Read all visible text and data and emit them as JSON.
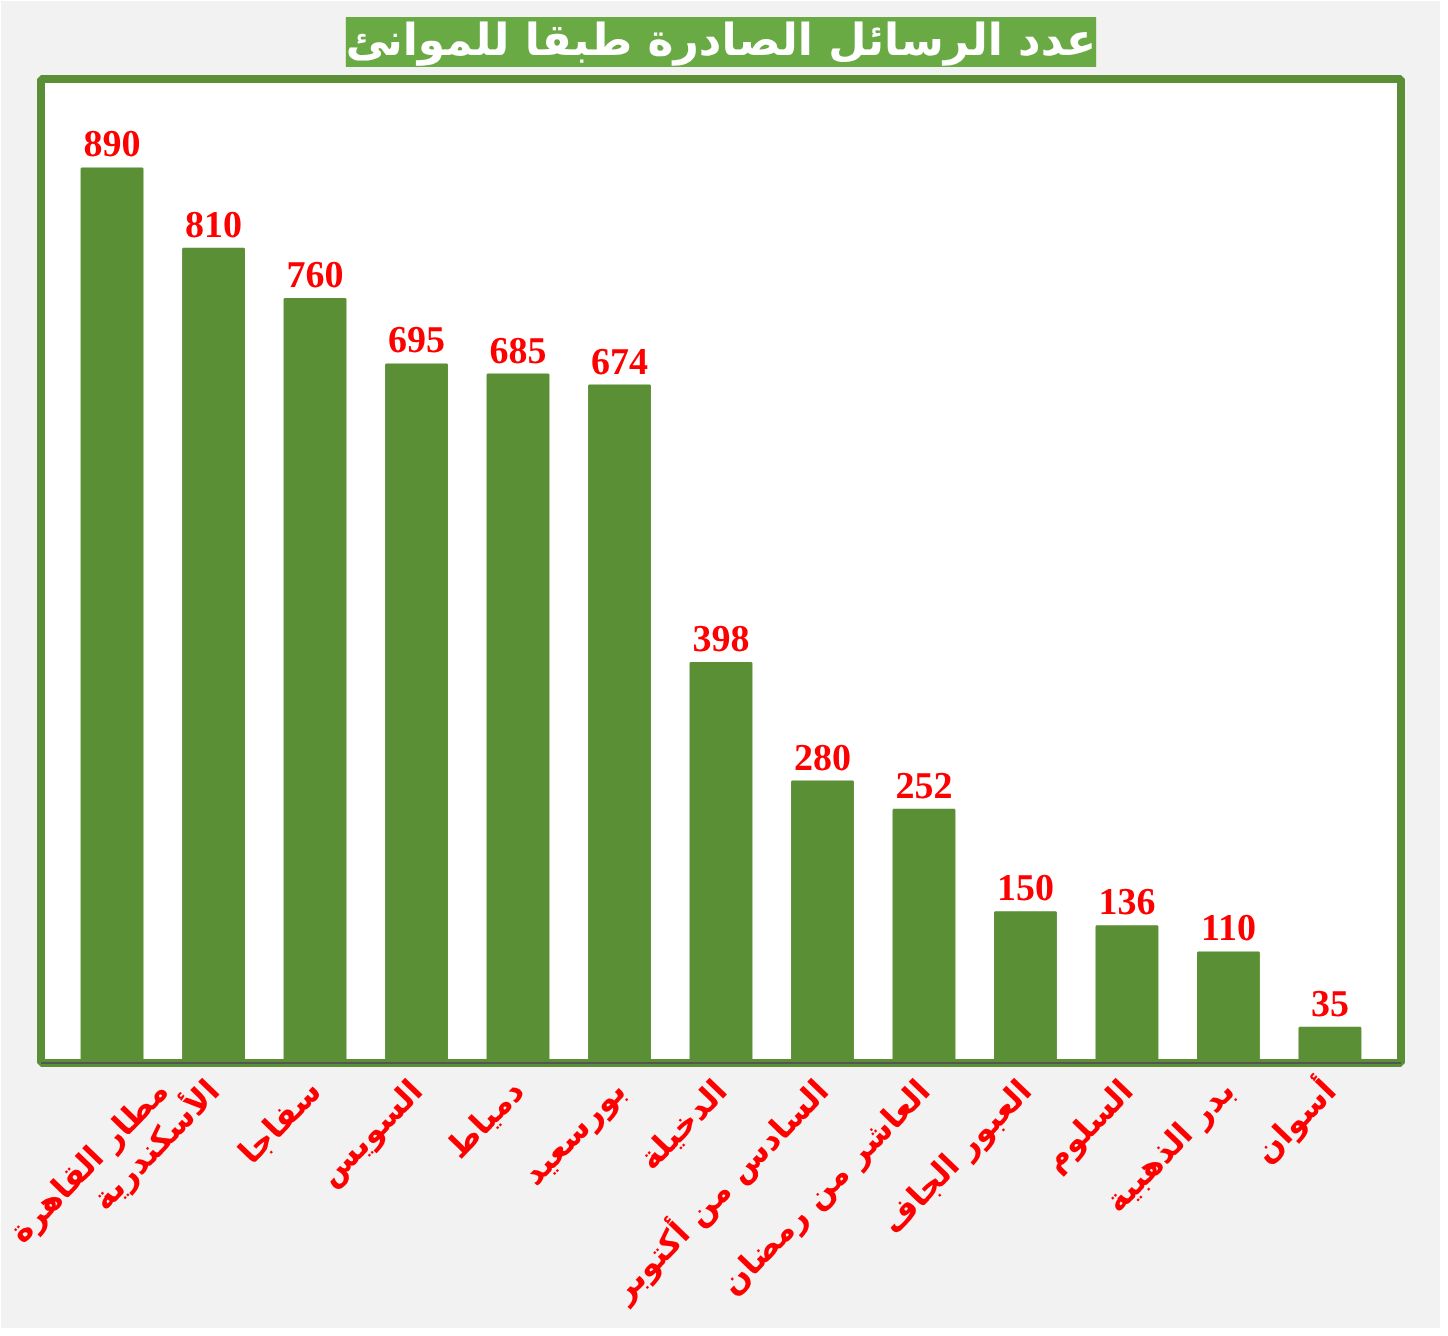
{
  "chart_data": {
    "type": "bar",
    "title": "عدد الرسائل الصادرة طبقا للموانئ",
    "categories": [
      "مطار القاهرة",
      "الأسكندرية",
      "سفاجا",
      "السويس",
      "دمياط",
      "بورسعيد",
      "الدخيلة",
      "السادس من أكتوبر",
      "العاشر من رمضان",
      "العبور الجاف",
      "السلوم",
      "بدر الذهبية",
      "أسوان"
    ],
    "values": [
      890,
      810,
      760,
      695,
      685,
      674,
      398,
      280,
      252,
      150,
      136,
      110,
      35
    ],
    "color": "#5b8f35",
    "data_labels": true,
    "grid": false
  }
}
